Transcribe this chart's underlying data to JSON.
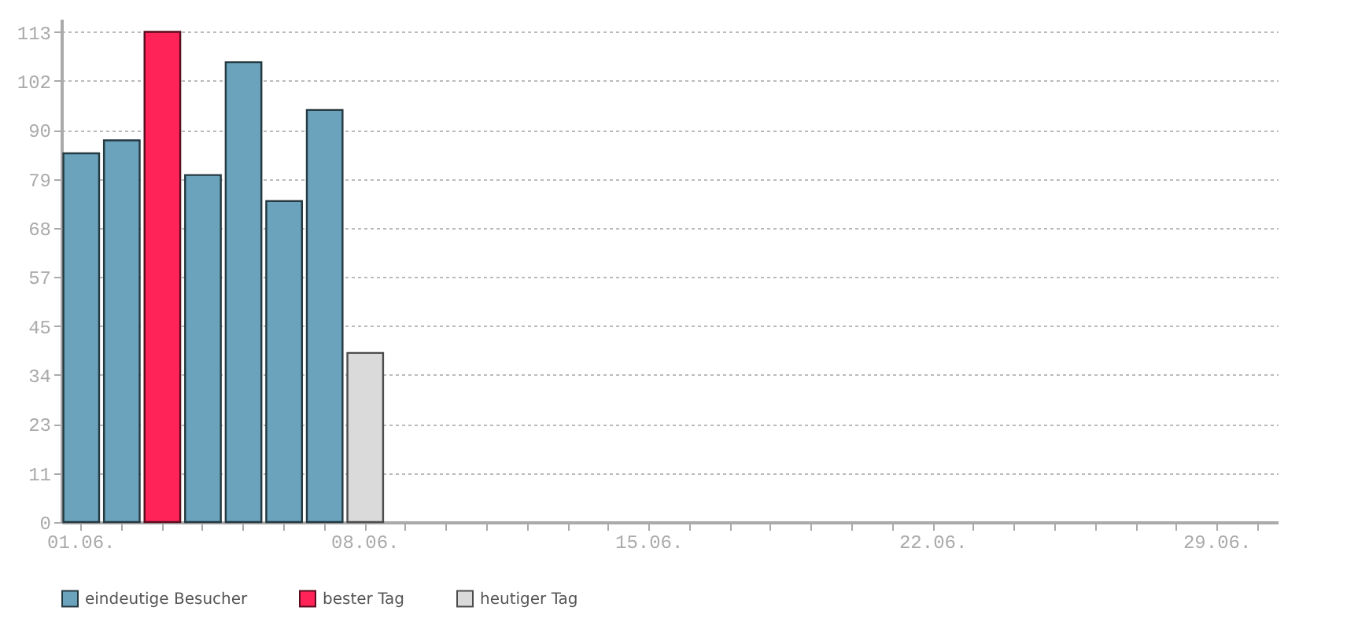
{
  "chart_data": {
    "type": "bar",
    "categories": [
      "01.06.",
      null,
      null,
      null,
      null,
      null,
      null,
      "08.06.",
      null,
      null,
      null,
      null,
      null,
      null,
      "15.06.",
      null,
      null,
      null,
      null,
      null,
      null,
      "22.06.",
      null,
      null,
      null,
      null,
      null,
      null,
      "29.06.",
      null
    ],
    "series": [
      {
        "name": "eindeutige Besucher",
        "color": "#6aa3bb",
        "values": [
          85,
          88,
          null,
          80,
          106,
          74,
          95,
          null,
          null,
          null,
          null,
          null,
          null,
          null,
          null,
          null,
          null,
          null,
          null,
          null,
          null,
          null,
          null,
          null,
          null,
          null,
          null,
          null,
          null,
          null
        ]
      },
      {
        "name": "bester Tag",
        "color": "#ff2358",
        "values": [
          null,
          null,
          113,
          null,
          null,
          null,
          null,
          null,
          null,
          null,
          null,
          null,
          null,
          null,
          null,
          null,
          null,
          null,
          null,
          null,
          null,
          null,
          null,
          null,
          null,
          null,
          null,
          null,
          null,
          null
        ]
      },
      {
        "name": "heutiger Tag",
        "color": "#dadada",
        "values": [
          null,
          null,
          null,
          null,
          null,
          null,
          null,
          39,
          null,
          null,
          null,
          null,
          null,
          null,
          null,
          null,
          null,
          null,
          null,
          null,
          null,
          null,
          null,
          null,
          null,
          null,
          null,
          null,
          null,
          null
        ]
      }
    ],
    "ylim": [
      0,
      116
    ],
    "yticks": [
      0,
      {
        "value": 11.3,
        "label": "11"
      },
      {
        "value": 22.6,
        "label": "23"
      },
      {
        "value": 33.9,
        "label": "34"
      },
      {
        "value": 45.2,
        "label": "45"
      },
      {
        "value": 56.5,
        "label": "57"
      },
      {
        "value": 67.8,
        "label": "68"
      },
      {
        "value": 79.1,
        "label": "79"
      },
      {
        "value": 90.4,
        "label": "90"
      },
      {
        "value": 101.7,
        "label": "102"
      },
      {
        "value": 113,
        "label": "113"
      }
    ],
    "grid": "y",
    "legend": "bottom"
  }
}
